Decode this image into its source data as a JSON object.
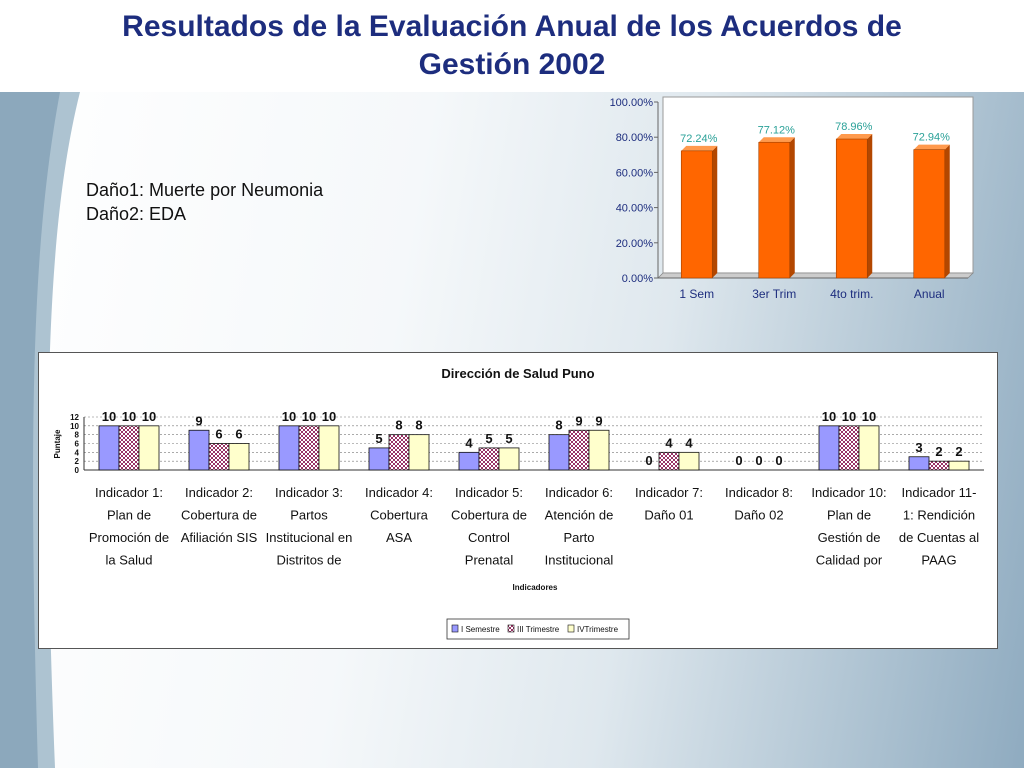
{
  "slide": {
    "title_line1": "Resultados de la Evaluación Anual de los Acuerdos de",
    "title_line2": "Gestión 2002",
    "note1": "Daño1: Muerte por Neumonia",
    "note2": "Daño2: EDA"
  },
  "colors": {
    "title": "#1d2d7e",
    "top_bar": "#ff6600",
    "top_label": "#2aa198",
    "series1": "#9999ff",
    "series2": "#993366",
    "series3": "#ffffcc"
  },
  "chart_data": [
    {
      "type": "bar",
      "categories": [
        "1 Sem",
        "3er Trim",
        "4to trim.",
        "Anual"
      ],
      "values": [
        72.24,
        77.12,
        78.96,
        72.94
      ],
      "value_labels": [
        "72.24%",
        "77.12%",
        "78.96%",
        "72.94%"
      ],
      "ylim": [
        0,
        100
      ],
      "yticks": [
        "0.00%",
        "20.00%",
        "40.00%",
        "60.00%",
        "80.00%",
        "100.00%"
      ],
      "title": "",
      "xlabel": "",
      "ylabel": ""
    },
    {
      "type": "bar",
      "title": "Dirección de Salud Puno",
      "xlabel": "Indicadores",
      "ylabel": "Puntaje",
      "ylim": [
        0,
        12
      ],
      "yticks": [
        "0",
        "2",
        "4",
        "6",
        "8",
        "10",
        "12"
      ],
      "categories": [
        [
          "Indicador 1:",
          "Plan de",
          "Promoción de",
          "la Salud"
        ],
        [
          "Indicador 2:",
          "Cobertura de",
          "Afiliación SIS"
        ],
        [
          "Indicador 3:",
          "Partos",
          "Institucional en",
          "Distritos de"
        ],
        [
          "Indicador 4:",
          "Cobertura",
          "ASA"
        ],
        [
          "Indicador 5:",
          "Cobertura de",
          "Control",
          "Prenatal"
        ],
        [
          "Indicador 6:",
          "Atención de",
          "Parto",
          "Institucional"
        ],
        [
          "Indicador 7:",
          "Daño 01"
        ],
        [
          "Indicador 8:",
          "Daño 02"
        ],
        [
          "Indicador 10:",
          "Plan de",
          "Gestión de",
          "Calidad por"
        ],
        [
          "Indicador 11-",
          "1: Rendición",
          "de Cuentas al",
          "PAAG"
        ]
      ],
      "series": [
        {
          "name": "I Semestre",
          "values": [
            10,
            9,
            10,
            5,
            4,
            8,
            0,
            0,
            10,
            3
          ]
        },
        {
          "name": "III Trimestre",
          "values": [
            10,
            6,
            10,
            8,
            5,
            9,
            4,
            0,
            10,
            2
          ]
        },
        {
          "name": "IVTrimestre",
          "values": [
            10,
            6,
            10,
            8,
            5,
            9,
            4,
            0,
            10,
            2
          ]
        }
      ],
      "legend_position": "bottom"
    }
  ]
}
